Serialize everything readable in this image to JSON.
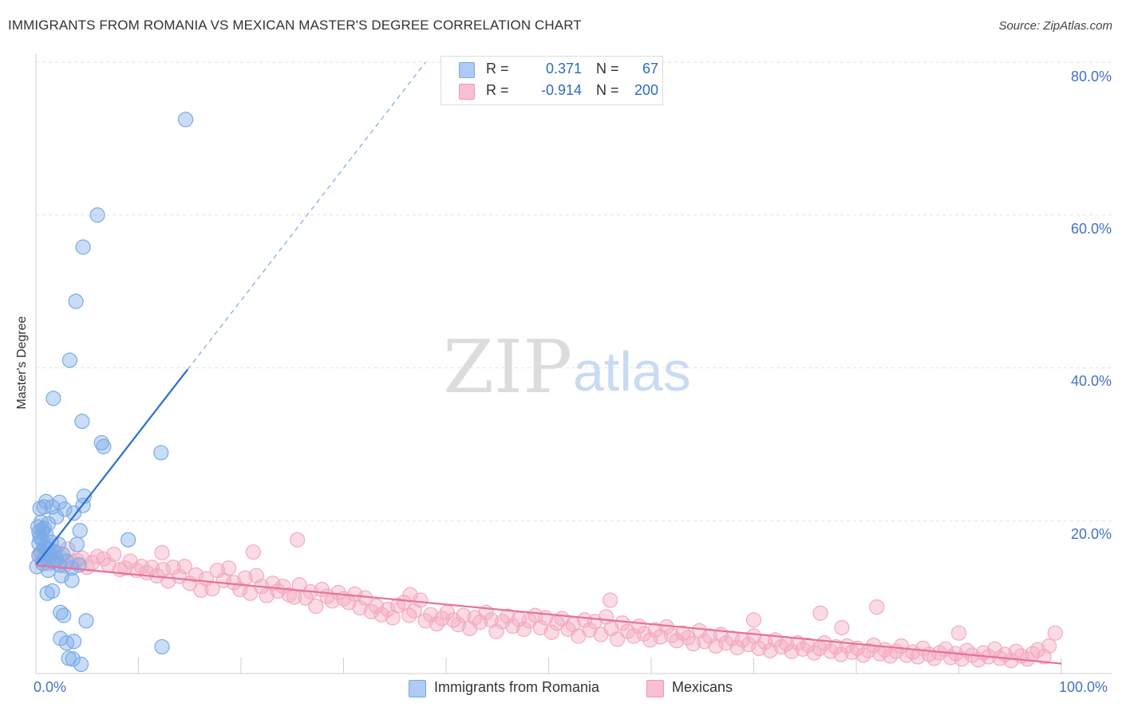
{
  "title": "IMMIGRANTS FROM ROMANIA VS MEXICAN MASTER'S DEGREE CORRELATION CHART",
  "source": "Source: ZipAtlas.com",
  "watermark": {
    "zip": "ZIP",
    "atlas": "atlas"
  },
  "legend": {
    "rows": [
      {
        "r_label": "R =",
        "r_value": "0.371",
        "n_label": "N =",
        "n_value": "67",
        "color": "#aecbf5",
        "border": "#7ea6e0"
      },
      {
        "r_label": "R =",
        "r_value": "-0.914",
        "n_label": "N =",
        "n_value": "200",
        "color": "#f7c0d0",
        "border": "#ee99b3"
      }
    ]
  },
  "bottom_legend": [
    {
      "label": "Immigrants from Romania",
      "color": "#aecbf5",
      "border": "#7ea6e0"
    },
    {
      "label": "Mexicans",
      "color": "#f7c0d0",
      "border": "#ee99b3"
    }
  ],
  "chart_data": {
    "type": "scatter",
    "title": "IMMIGRANTS FROM ROMANIA VS MEXICAN MASTER'S DEGREE CORRELATION CHART",
    "xlabel": "",
    "ylabel": "Master's Degree",
    "xlim": [
      0,
      100
    ],
    "ylim": [
      0,
      80
    ],
    "x_tick_labels": [
      "0.0%",
      "100.0%"
    ],
    "y_ticks": [
      20,
      40,
      60,
      80
    ],
    "y_tick_labels": [
      "20.0%",
      "40.0%",
      "60.0%",
      "80.0%"
    ],
    "grid": true,
    "series": [
      {
        "name": "Immigrants from Romania",
        "color": "#7aaae8",
        "line_color": "#2a6fd0",
        "R": 0.371,
        "N": 67,
        "trend": {
          "x": [
            0,
            14.8
          ],
          "y": [
            14.2,
            39.8
          ],
          "dash_to": [
            38,
            80
          ]
        },
        "points": [
          [
            14.6,
            72.5
          ],
          [
            6.0,
            60.0
          ],
          [
            4.6,
            55.8
          ],
          [
            3.9,
            48.7
          ],
          [
            3.3,
            41.0
          ],
          [
            1.7,
            36.0
          ],
          [
            4.5,
            33.0
          ],
          [
            6.4,
            30.2
          ],
          [
            6.6,
            29.7
          ],
          [
            12.2,
            28.9
          ],
          [
            4.7,
            23.2
          ],
          [
            1.0,
            22.5
          ],
          [
            2.3,
            22.4
          ],
          [
            0.8,
            21.8
          ],
          [
            4.6,
            22.0
          ],
          [
            1.6,
            21.8
          ],
          [
            2.8,
            21.5
          ],
          [
            0.4,
            21.6
          ],
          [
            3.7,
            21.0
          ],
          [
            2.0,
            20.5
          ],
          [
            0.5,
            19.8
          ],
          [
            1.2,
            19.6
          ],
          [
            0.8,
            19.0
          ],
          [
            0.2,
            19.2
          ],
          [
            0.6,
            18.8
          ],
          [
            0.3,
            18.5
          ],
          [
            1.0,
            18.2
          ],
          [
            0.4,
            17.8
          ],
          [
            4.3,
            18.7
          ],
          [
            9.0,
            17.5
          ],
          [
            0.6,
            17.6
          ],
          [
            0.3,
            17.0
          ],
          [
            1.5,
            17.2
          ],
          [
            2.2,
            16.9
          ],
          [
            4.0,
            16.9
          ],
          [
            0.8,
            16.6
          ],
          [
            1.2,
            16.2
          ],
          [
            1.8,
            16.0
          ],
          [
            0.5,
            15.8
          ],
          [
            2.6,
            15.6
          ],
          [
            1.4,
            15.4
          ],
          [
            0.9,
            15.2
          ],
          [
            2.0,
            15.0
          ],
          [
            3.0,
            14.7
          ],
          [
            1.6,
            14.6
          ],
          [
            0.7,
            14.4
          ],
          [
            2.3,
            14.2
          ],
          [
            4.2,
            14.2
          ],
          [
            0.1,
            14.0
          ],
          [
            3.5,
            13.8
          ],
          [
            1.2,
            13.5
          ],
          [
            2.5,
            12.8
          ],
          [
            3.5,
            12.2
          ],
          [
            1.6,
            10.8
          ],
          [
            1.1,
            10.5
          ],
          [
            2.4,
            8.0
          ],
          [
            2.7,
            7.6
          ],
          [
            4.9,
            6.9
          ],
          [
            2.4,
            4.6
          ],
          [
            3.7,
            4.2
          ],
          [
            3.0,
            4.0
          ],
          [
            12.3,
            3.5
          ],
          [
            3.2,
            2.0
          ],
          [
            3.6,
            1.9
          ],
          [
            4.4,
            1.2
          ],
          [
            1.0,
            16.5
          ],
          [
            0.3,
            15.5
          ]
        ]
      },
      {
        "name": "Mexicans",
        "color": "#f4a9bf",
        "line_color": "#e8709a",
        "R": -0.914,
        "N": 200,
        "trend": {
          "x": [
            0,
            100
          ],
          "y": [
            14.2,
            1.3
          ]
        },
        "points": [
          [
            0.3,
            15.4
          ],
          [
            0.6,
            14.8
          ],
          [
            0.9,
            15.6
          ],
          [
            1.3,
            14.4
          ],
          [
            1.7,
            15.9
          ],
          [
            2.0,
            14.9
          ],
          [
            2.4,
            15.2
          ],
          [
            2.8,
            14.1
          ],
          [
            3.1,
            16.3
          ],
          [
            3.5,
            14.6
          ],
          [
            4.0,
            14.8
          ],
          [
            4.5,
            15.1
          ],
          [
            5.0,
            13.9
          ],
          [
            5.5,
            14.5
          ],
          [
            6.0,
            15.3
          ],
          [
            6.6,
            15.0
          ],
          [
            7.1,
            14.2
          ],
          [
            7.6,
            15.6
          ],
          [
            8.2,
            13.6
          ],
          [
            8.7,
            13.8
          ],
          [
            9.2,
            14.7
          ],
          [
            9.8,
            13.5
          ],
          [
            10.3,
            14.0
          ],
          [
            10.8,
            13.2
          ],
          [
            11.3,
            13.9
          ],
          [
            11.8,
            12.8
          ],
          [
            12.4,
            13.6
          ],
          [
            12.9,
            12.1
          ],
          [
            13.4,
            13.9
          ],
          [
            14.0,
            12.7
          ],
          [
            14.5,
            14.0
          ],
          [
            15.0,
            11.8
          ],
          [
            15.6,
            12.9
          ],
          [
            16.1,
            10.9
          ],
          [
            16.6,
            12.4
          ],
          [
            17.2,
            11.1
          ],
          [
            17.7,
            13.5
          ],
          [
            18.3,
            12.2
          ],
          [
            18.8,
            13.8
          ],
          [
            19.3,
            11.9
          ],
          [
            19.9,
            11.0
          ],
          [
            20.4,
            12.5
          ],
          [
            20.9,
            10.5
          ],
          [
            21.5,
            12.8
          ],
          [
            22.0,
            11.4
          ],
          [
            22.5,
            10.2
          ],
          [
            23.1,
            11.8
          ],
          [
            23.6,
            10.8
          ],
          [
            24.1,
            11.4
          ],
          [
            24.7,
            10.3
          ],
          [
            25.2,
            10.0
          ],
          [
            25.7,
            11.6
          ],
          [
            26.3,
            9.9
          ],
          [
            26.8,
            10.7
          ],
          [
            27.3,
            8.8
          ],
          [
            27.9,
            11.0
          ],
          [
            28.4,
            10.1
          ],
          [
            28.9,
            9.5
          ],
          [
            29.5,
            10.6
          ],
          [
            30.0,
            9.8
          ],
          [
            30.5,
            9.3
          ],
          [
            31.1,
            10.4
          ],
          [
            31.6,
            8.6
          ],
          [
            32.1,
            9.9
          ],
          [
            32.7,
            8.1
          ],
          [
            33.2,
            8.8
          ],
          [
            33.7,
            7.7
          ],
          [
            34.3,
            8.4
          ],
          [
            34.8,
            7.3
          ],
          [
            35.3,
            8.9
          ],
          [
            35.9,
            9.3
          ],
          [
            36.4,
            7.6
          ],
          [
            36.9,
            8.2
          ],
          [
            37.5,
            9.6
          ],
          [
            38.0,
            6.9
          ],
          [
            38.5,
            7.7
          ],
          [
            39.1,
            6.5
          ],
          [
            39.6,
            7.2
          ],
          [
            40.1,
            8.0
          ],
          [
            40.7,
            7.0
          ],
          [
            41.2,
            6.4
          ],
          [
            41.7,
            7.6
          ],
          [
            42.3,
            5.9
          ],
          [
            42.8,
            7.3
          ],
          [
            43.3,
            6.7
          ],
          [
            43.9,
            8.0
          ],
          [
            44.4,
            7.0
          ],
          [
            44.9,
            5.5
          ],
          [
            45.5,
            6.8
          ],
          [
            46.0,
            7.5
          ],
          [
            46.5,
            6.2
          ],
          [
            47.1,
            7.1
          ],
          [
            47.6,
            5.8
          ],
          [
            48.1,
            6.9
          ],
          [
            48.7,
            7.6
          ],
          [
            49.2,
            6.0
          ],
          [
            49.7,
            7.3
          ],
          [
            50.3,
            5.4
          ],
          [
            50.8,
            6.6
          ],
          [
            51.3,
            7.2
          ],
          [
            51.9,
            5.8
          ],
          [
            52.4,
            6.4
          ],
          [
            52.9,
            4.9
          ],
          [
            53.5,
            7.0
          ],
          [
            54.0,
            5.7
          ],
          [
            54.5,
            6.8
          ],
          [
            55.1,
            5.1
          ],
          [
            55.6,
            7.4
          ],
          [
            56.1,
            5.9
          ],
          [
            56.7,
            4.5
          ],
          [
            57.2,
            6.6
          ],
          [
            57.7,
            5.5
          ],
          [
            58.3,
            4.9
          ],
          [
            58.8,
            6.2
          ],
          [
            59.3,
            5.2
          ],
          [
            59.9,
            4.4
          ],
          [
            60.4,
            5.7
          ],
          [
            60.9,
            4.8
          ],
          [
            61.5,
            6.1
          ],
          [
            62.0,
            5.0
          ],
          [
            62.5,
            4.3
          ],
          [
            63.1,
            5.3
          ],
          [
            63.6,
            4.7
          ],
          [
            64.1,
            3.9
          ],
          [
            64.7,
            5.6
          ],
          [
            65.2,
            4.2
          ],
          [
            65.7,
            4.9
          ],
          [
            66.3,
            3.6
          ],
          [
            66.8,
            5.1
          ],
          [
            67.3,
            4.0
          ],
          [
            67.9,
            4.6
          ],
          [
            68.4,
            3.4
          ],
          [
            68.9,
            4.4
          ],
          [
            69.5,
            3.8
          ],
          [
            70.0,
            4.9
          ],
          [
            70.5,
            3.3
          ],
          [
            71.1,
            4.1
          ],
          [
            71.6,
            3.0
          ],
          [
            72.1,
            4.4
          ],
          [
            72.7,
            3.5
          ],
          [
            73.2,
            3.9
          ],
          [
            73.7,
            2.9
          ],
          [
            74.3,
            4.0
          ],
          [
            74.8,
            3.2
          ],
          [
            75.3,
            3.7
          ],
          [
            75.9,
            2.7
          ],
          [
            76.4,
            3.3
          ],
          [
            76.9,
            4.0
          ],
          [
            77.5,
            2.9
          ],
          [
            78.0,
            3.5
          ],
          [
            78.5,
            2.5
          ],
          [
            79.1,
            3.6
          ],
          [
            79.6,
            2.8
          ],
          [
            80.1,
            3.3
          ],
          [
            80.7,
            2.4
          ],
          [
            81.2,
            3.0
          ],
          [
            81.7,
            3.7
          ],
          [
            82.3,
            2.6
          ],
          [
            82.8,
            3.1
          ],
          [
            83.3,
            2.3
          ],
          [
            83.9,
            2.9
          ],
          [
            84.4,
            3.6
          ],
          [
            84.9,
            2.4
          ],
          [
            85.5,
            2.8
          ],
          [
            86.0,
            2.2
          ],
          [
            86.5,
            3.3
          ],
          [
            87.1,
            2.5
          ],
          [
            87.6,
            2.0
          ],
          [
            88.1,
            2.7
          ],
          [
            88.7,
            3.2
          ],
          [
            89.2,
            2.1
          ],
          [
            89.7,
            2.6
          ],
          [
            90.3,
            1.9
          ],
          [
            90.8,
            3.0
          ],
          [
            91.3,
            2.4
          ],
          [
            91.9,
            1.8
          ],
          [
            92.4,
            2.7
          ],
          [
            92.9,
            2.2
          ],
          [
            93.5,
            3.2
          ],
          [
            94.0,
            2.0
          ],
          [
            94.5,
            2.5
          ],
          [
            95.1,
            1.7
          ],
          [
            95.6,
            2.9
          ],
          [
            96.1,
            2.3
          ],
          [
            96.7,
            1.9
          ],
          [
            97.2,
            2.6
          ],
          [
            97.7,
            3.1
          ],
          [
            98.3,
            2.2
          ],
          [
            98.8,
            3.6
          ],
          [
            99.4,
            5.3
          ],
          [
            21.2,
            15.9
          ],
          [
            25.5,
            17.5
          ],
          [
            12.3,
            15.8
          ],
          [
            56.0,
            9.6
          ],
          [
            76.5,
            7.9
          ],
          [
            82.0,
            8.7
          ],
          [
            70.0,
            7.0
          ],
          [
            78.6,
            6.0
          ],
          [
            90.0,
            5.3
          ],
          [
            36.5,
            10.3
          ]
        ]
      }
    ]
  }
}
